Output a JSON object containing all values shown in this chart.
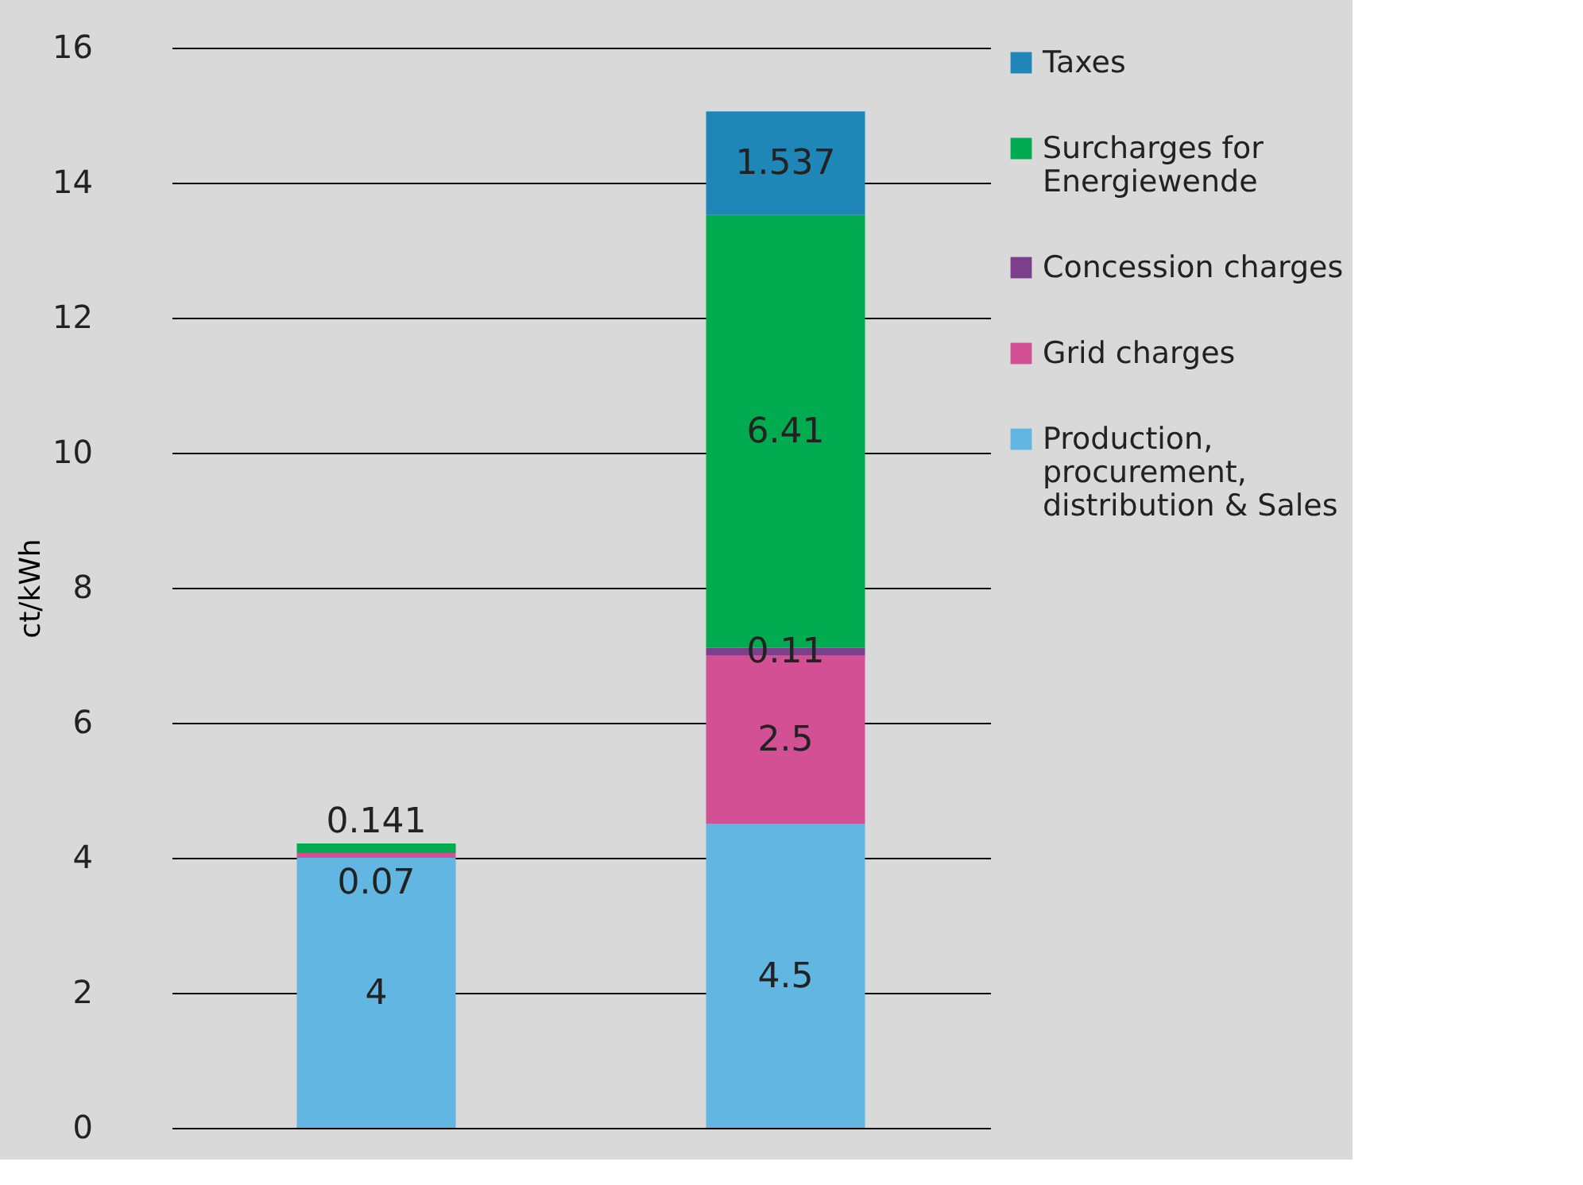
{
  "chart_data": {
    "type": "bar",
    "stacked": true,
    "ylabel": "ct/kWh",
    "categories": [
      null,
      null
    ],
    "series": [
      {
        "name": "Production, procurement, distribution & Sales",
        "color": "#62b6e2",
        "values": [
          4,
          4.5
        ],
        "value_labels": [
          "4",
          "4.5"
        ]
      },
      {
        "name": "Grid charges",
        "color": "#d45094",
        "values": [
          0.07,
          2.5
        ],
        "value_labels": [
          "0.07",
          "2.5"
        ]
      },
      {
        "name": "Concession charges",
        "color": "#7b3f8c",
        "values": [
          null,
          0.11
        ],
        "value_labels": [
          null,
          "0.11"
        ]
      },
      {
        "name": "Surcharges for Energiewende",
        "color": "#00ac4f",
        "values": [
          0.141,
          6.41
        ],
        "value_labels": [
          "0.141",
          "6.41"
        ]
      },
      {
        "name": "Taxes",
        "color": "#1f87b8",
        "values": [
          null,
          1.537
        ],
        "value_labels": [
          null,
          "1.537"
        ]
      }
    ],
    "ylim": [
      0,
      16
    ],
    "yticks": [
      0,
      2,
      4,
      6,
      8,
      10,
      12,
      14,
      16
    ],
    "grid": "y",
    "legend": "right",
    "tick_labels": "y"
  }
}
